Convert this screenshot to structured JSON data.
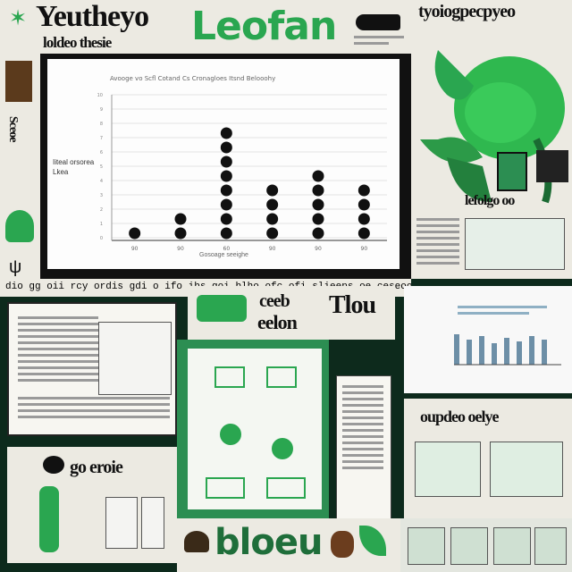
{
  "header": {
    "left_title": "Yeutheyo",
    "left_sub": "loldeo thesie",
    "center_title": "Leofan",
    "right_title": "tyoiogpecpyeo"
  },
  "mid": {
    "strip_text": "dio gg oii rcy ordis gdi o ifo ibs goi blho ofc ofi slieeps oe ceseoo",
    "label_top": "ceeb",
    "label_bottom": "eelon",
    "label_right": "Tlou"
  },
  "right": {
    "creature_caption": "lefolgo oo",
    "mid_title": "oupdeo oelye"
  },
  "bottom": {
    "left_title": "go eroie",
    "center_title": "bloeu"
  },
  "chart_data": {
    "type": "scatter",
    "title": "Avooge vo Scfl Cotand Cs Cronagloes Itsnd Belooohy",
    "xlabel": "Gosoage seeighe",
    "ylabel": "Iiteal orsorea Lkea",
    "categories": [
      "90",
      "90",
      "60",
      "90",
      "90",
      "90"
    ],
    "counts": [
      1,
      2,
      8,
      4,
      5,
      4
    ],
    "yticks": [
      "0",
      "1",
      "2",
      "3",
      "4",
      "5",
      "6",
      "7",
      "8",
      "9",
      "10"
    ],
    "ylim": [
      0,
      10
    ],
    "grid": true
  },
  "colors": {
    "accent": "#2aa650",
    "dark_bg": "#0d2a1c",
    "dot": "#111111"
  }
}
